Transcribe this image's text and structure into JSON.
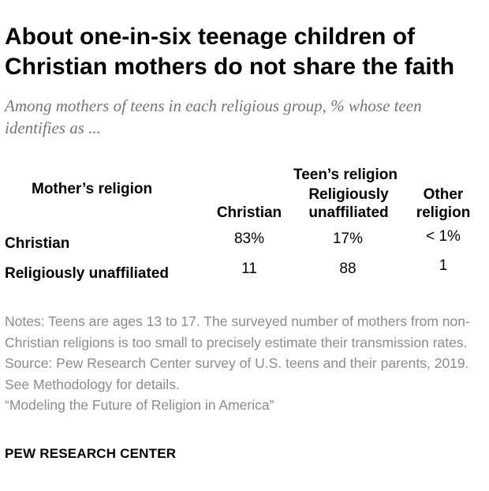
{
  "header": {
    "title": "About one-in-six teenage children of Christian mothers do not share the faith",
    "subtitle": "Among mothers of teens in each religious group, % whose teen identifies as ..."
  },
  "chart_data": {
    "type": "table",
    "row_header": "Mother’s religion",
    "column_group_header": "Teen’s religion",
    "columns": [
      "Christian",
      "Religiously unaffiliated",
      "Other religion"
    ],
    "rows": [
      {
        "label": "Christian",
        "values": [
          "83%",
          "17%",
          "< 1%"
        ]
      },
      {
        "label": "Religiously unaffiliated",
        "values": [
          "11",
          "88",
          "1"
        ]
      }
    ]
  },
  "footer": {
    "notes": "Notes: Teens are ages 13 to 17. The surveyed number of mothers from non-Christian religions is too small to precisely estimate their transmission rates.",
    "source": "Source: Pew Research Center survey of U.S. teens and their parents, 2019. See Methodology for details.",
    "report": "“Modeling the Future of Religion in America”",
    "org": "PEW RESEARCH CENTER"
  }
}
